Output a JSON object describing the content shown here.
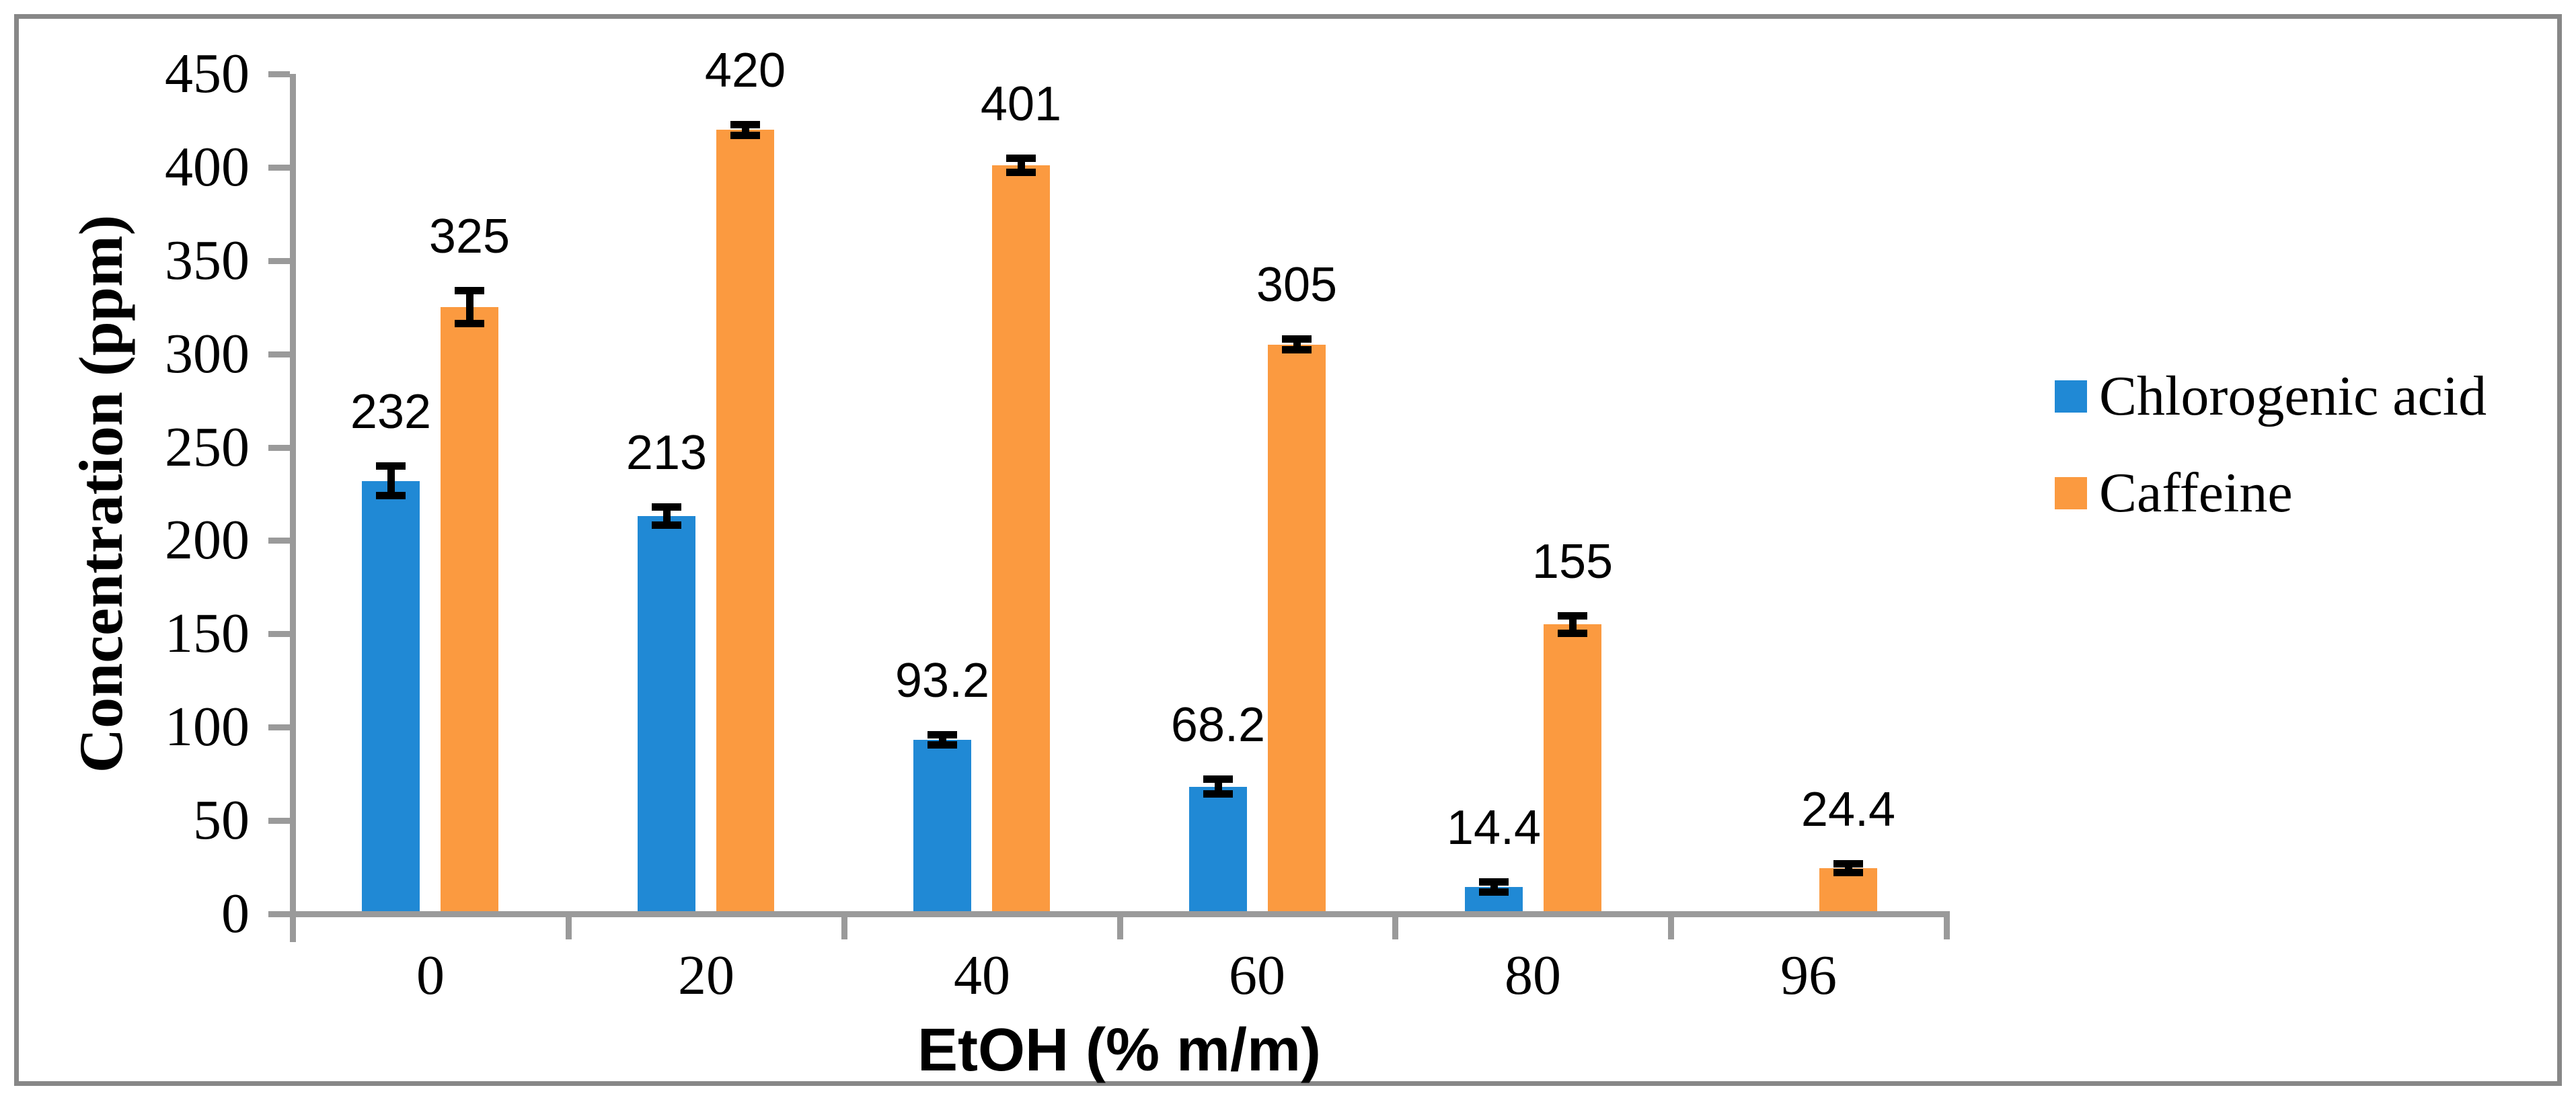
{
  "chart_data": {
    "type": "bar",
    "title": "",
    "categories": [
      "0",
      "20",
      "40",
      "60",
      "80",
      "96"
    ],
    "xlabel": "EtOH (% m/m)",
    "ylabel": "Concentration (ppm)",
    "ylim": [
      0,
      450
    ],
    "yticks": [
      450,
      400,
      350,
      300,
      250,
      200,
      150,
      100,
      50,
      0
    ],
    "grid": false,
    "legend_position": "right-middle",
    "error_bars": true,
    "series": [
      {
        "name": "Chlorogenic acid",
        "color": "#2089D5",
        "values": [
          232,
          213,
          93.2,
          68.2,
          14.4,
          null
        ],
        "errors": [
          8,
          5,
          3,
          4,
          3,
          null
        ],
        "data_labels": [
          "232",
          "213",
          "93.2",
          "68.2",
          "14.4",
          ""
        ]
      },
      {
        "name": "Caffeine",
        "color": "#FB9A40",
        "values": [
          325,
          420,
          401,
          305,
          155,
          24.4
        ],
        "errors": [
          9,
          3,
          4,
          3,
          5,
          2
        ],
        "data_labels": [
          "325",
          "420",
          "401",
          "305",
          "155",
          "24.4"
        ]
      }
    ]
  },
  "palette": {
    "axis_line": "#9A9A9A",
    "frame_border": "#878787",
    "error_bar": "#000000",
    "label_text": "#000000",
    "background": "#FFFFFF"
  }
}
